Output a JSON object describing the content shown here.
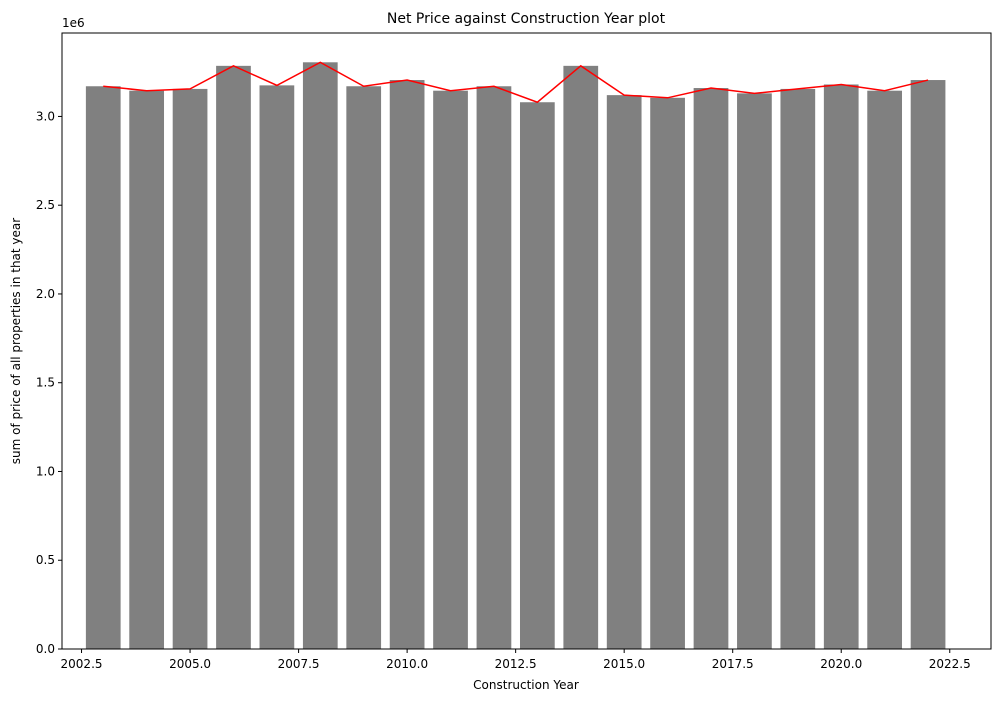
{
  "chart_data": {
    "type": "bar",
    "title": "Net Price against Construction Year plot",
    "xlabel": "Construction Year",
    "ylabel": "sum of price of all properties in that year",
    "y_offset_label": "1e6",
    "x": [
      2003,
      2004,
      2005,
      2006,
      2007,
      2008,
      2009,
      2010,
      2011,
      2012,
      2013,
      2014,
      2015,
      2016,
      2017,
      2018,
      2019,
      2020,
      2021,
      2022
    ],
    "series": [
      {
        "type": "bar",
        "values": [
          3.17,
          3.145,
          3.155,
          3.285,
          3.175,
          3.305,
          3.17,
          3.205,
          3.145,
          3.17,
          3.08,
          3.285,
          3.12,
          3.105,
          3.16,
          3.13,
          3.155,
          3.18,
          3.145,
          3.205
        ],
        "color": "#808080"
      },
      {
        "type": "line",
        "values": [
          3.17,
          3.145,
          3.155,
          3.285,
          3.175,
          3.305,
          3.17,
          3.205,
          3.145,
          3.17,
          3.08,
          3.285,
          3.12,
          3.105,
          3.16,
          3.13,
          3.155,
          3.18,
          3.145,
          3.205
        ],
        "color": "#ff0000"
      }
    ],
    "xlim": [
      2002.05,
      2023.45
    ],
    "ylim": [
      0,
      3.47
    ],
    "xticks": [
      2002.5,
      2005.0,
      2007.5,
      2010.0,
      2012.5,
      2015.0,
      2017.5,
      2020.0,
      2022.5
    ],
    "xtick_labels": [
      "2002.5",
      "2005.0",
      "2007.5",
      "2010.0",
      "2012.5",
      "2015.0",
      "2017.5",
      "2020.0",
      "2022.5"
    ],
    "yticks": [
      0.0,
      0.5,
      1.0,
      1.5,
      2.0,
      2.5,
      3.0
    ],
    "ytick_labels": [
      "0.0",
      "0.5",
      "1.0",
      "1.5",
      "2.0",
      "2.5",
      "3.0"
    ],
    "bar_width": 0.8,
    "grid": false,
    "legend": "none"
  }
}
